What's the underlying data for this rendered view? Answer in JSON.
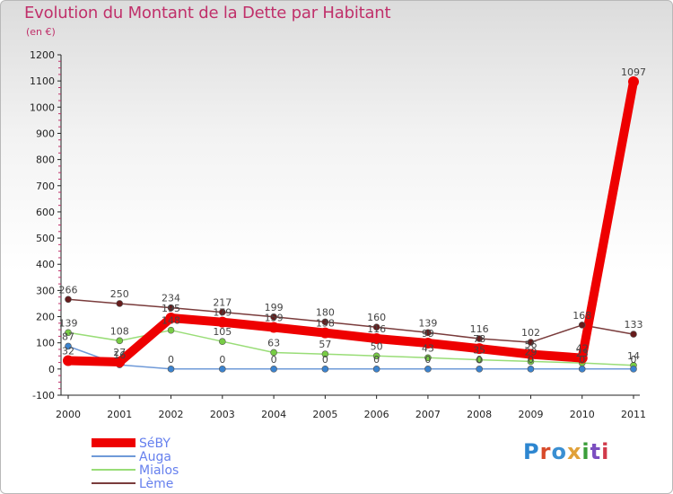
{
  "header": {
    "title": "Evolution du Montant de la Dette par Habitant",
    "unit": "(en €)"
  },
  "logo": {
    "text": "Proxiti"
  },
  "chart_data": {
    "type": "line",
    "title": "Evolution du Montant de la Dette par Habitant",
    "ylabel": "(en €)",
    "xlabel": "",
    "categories": [
      "2000",
      "2001",
      "2002",
      "2003",
      "2004",
      "2005",
      "2006",
      "2007",
      "2008",
      "2009",
      "2010",
      "2011"
    ],
    "ylim": [
      -100,
      1200
    ],
    "yticks": [
      -100,
      0,
      100,
      200,
      300,
      400,
      500,
      600,
      700,
      800,
      900,
      1000,
      1100,
      1200
    ],
    "grid": false,
    "legend": "bottom-left",
    "series": [
      {
        "name": "SéBY",
        "color": "#ee0000",
        "marker": "#ee0000",
        "values": [
          32,
          27,
          195,
          179,
          159,
          138,
          116,
          99,
          78,
          56,
          42,
          1097
        ],
        "labels": [
          "32",
          "27",
          "195",
          "179",
          "159",
          "138",
          "116",
          "99",
          "78",
          "56",
          "42",
          "1097"
        ]
      },
      {
        "name": "Auga",
        "color": "#6f9ad8",
        "marker": "#3b83cf",
        "values": [
          87,
          16,
          0,
          0,
          0,
          0,
          0,
          0,
          0,
          0,
          0,
          0
        ],
        "labels": [
          "87",
          "16",
          "0",
          "0",
          "0",
          "0",
          "0",
          "0",
          "0",
          "0",
          "0",
          "0"
        ]
      },
      {
        "name": "Mialos",
        "color": "#99dd77",
        "marker": "#77cc44",
        "values": [
          139,
          108,
          148,
          105,
          63,
          57,
          50,
          43,
          35,
          29,
          23,
          14
        ],
        "labels": [
          "139",
          "108",
          "148",
          "105",
          "63",
          "57",
          "50",
          "43",
          "35",
          "29",
          "23",
          "14"
        ]
      },
      {
        "name": "Lème",
        "color": "#7a3c3c",
        "marker": "#661c1c",
        "values": [
          266,
          250,
          234,
          217,
          199,
          180,
          160,
          139,
          116,
          102,
          168,
          133
        ],
        "labels": [
          "266",
          "250",
          "234",
          "217",
          "199",
          "180",
          "160",
          "139",
          "116",
          "102",
          "168",
          "133"
        ]
      }
    ]
  }
}
